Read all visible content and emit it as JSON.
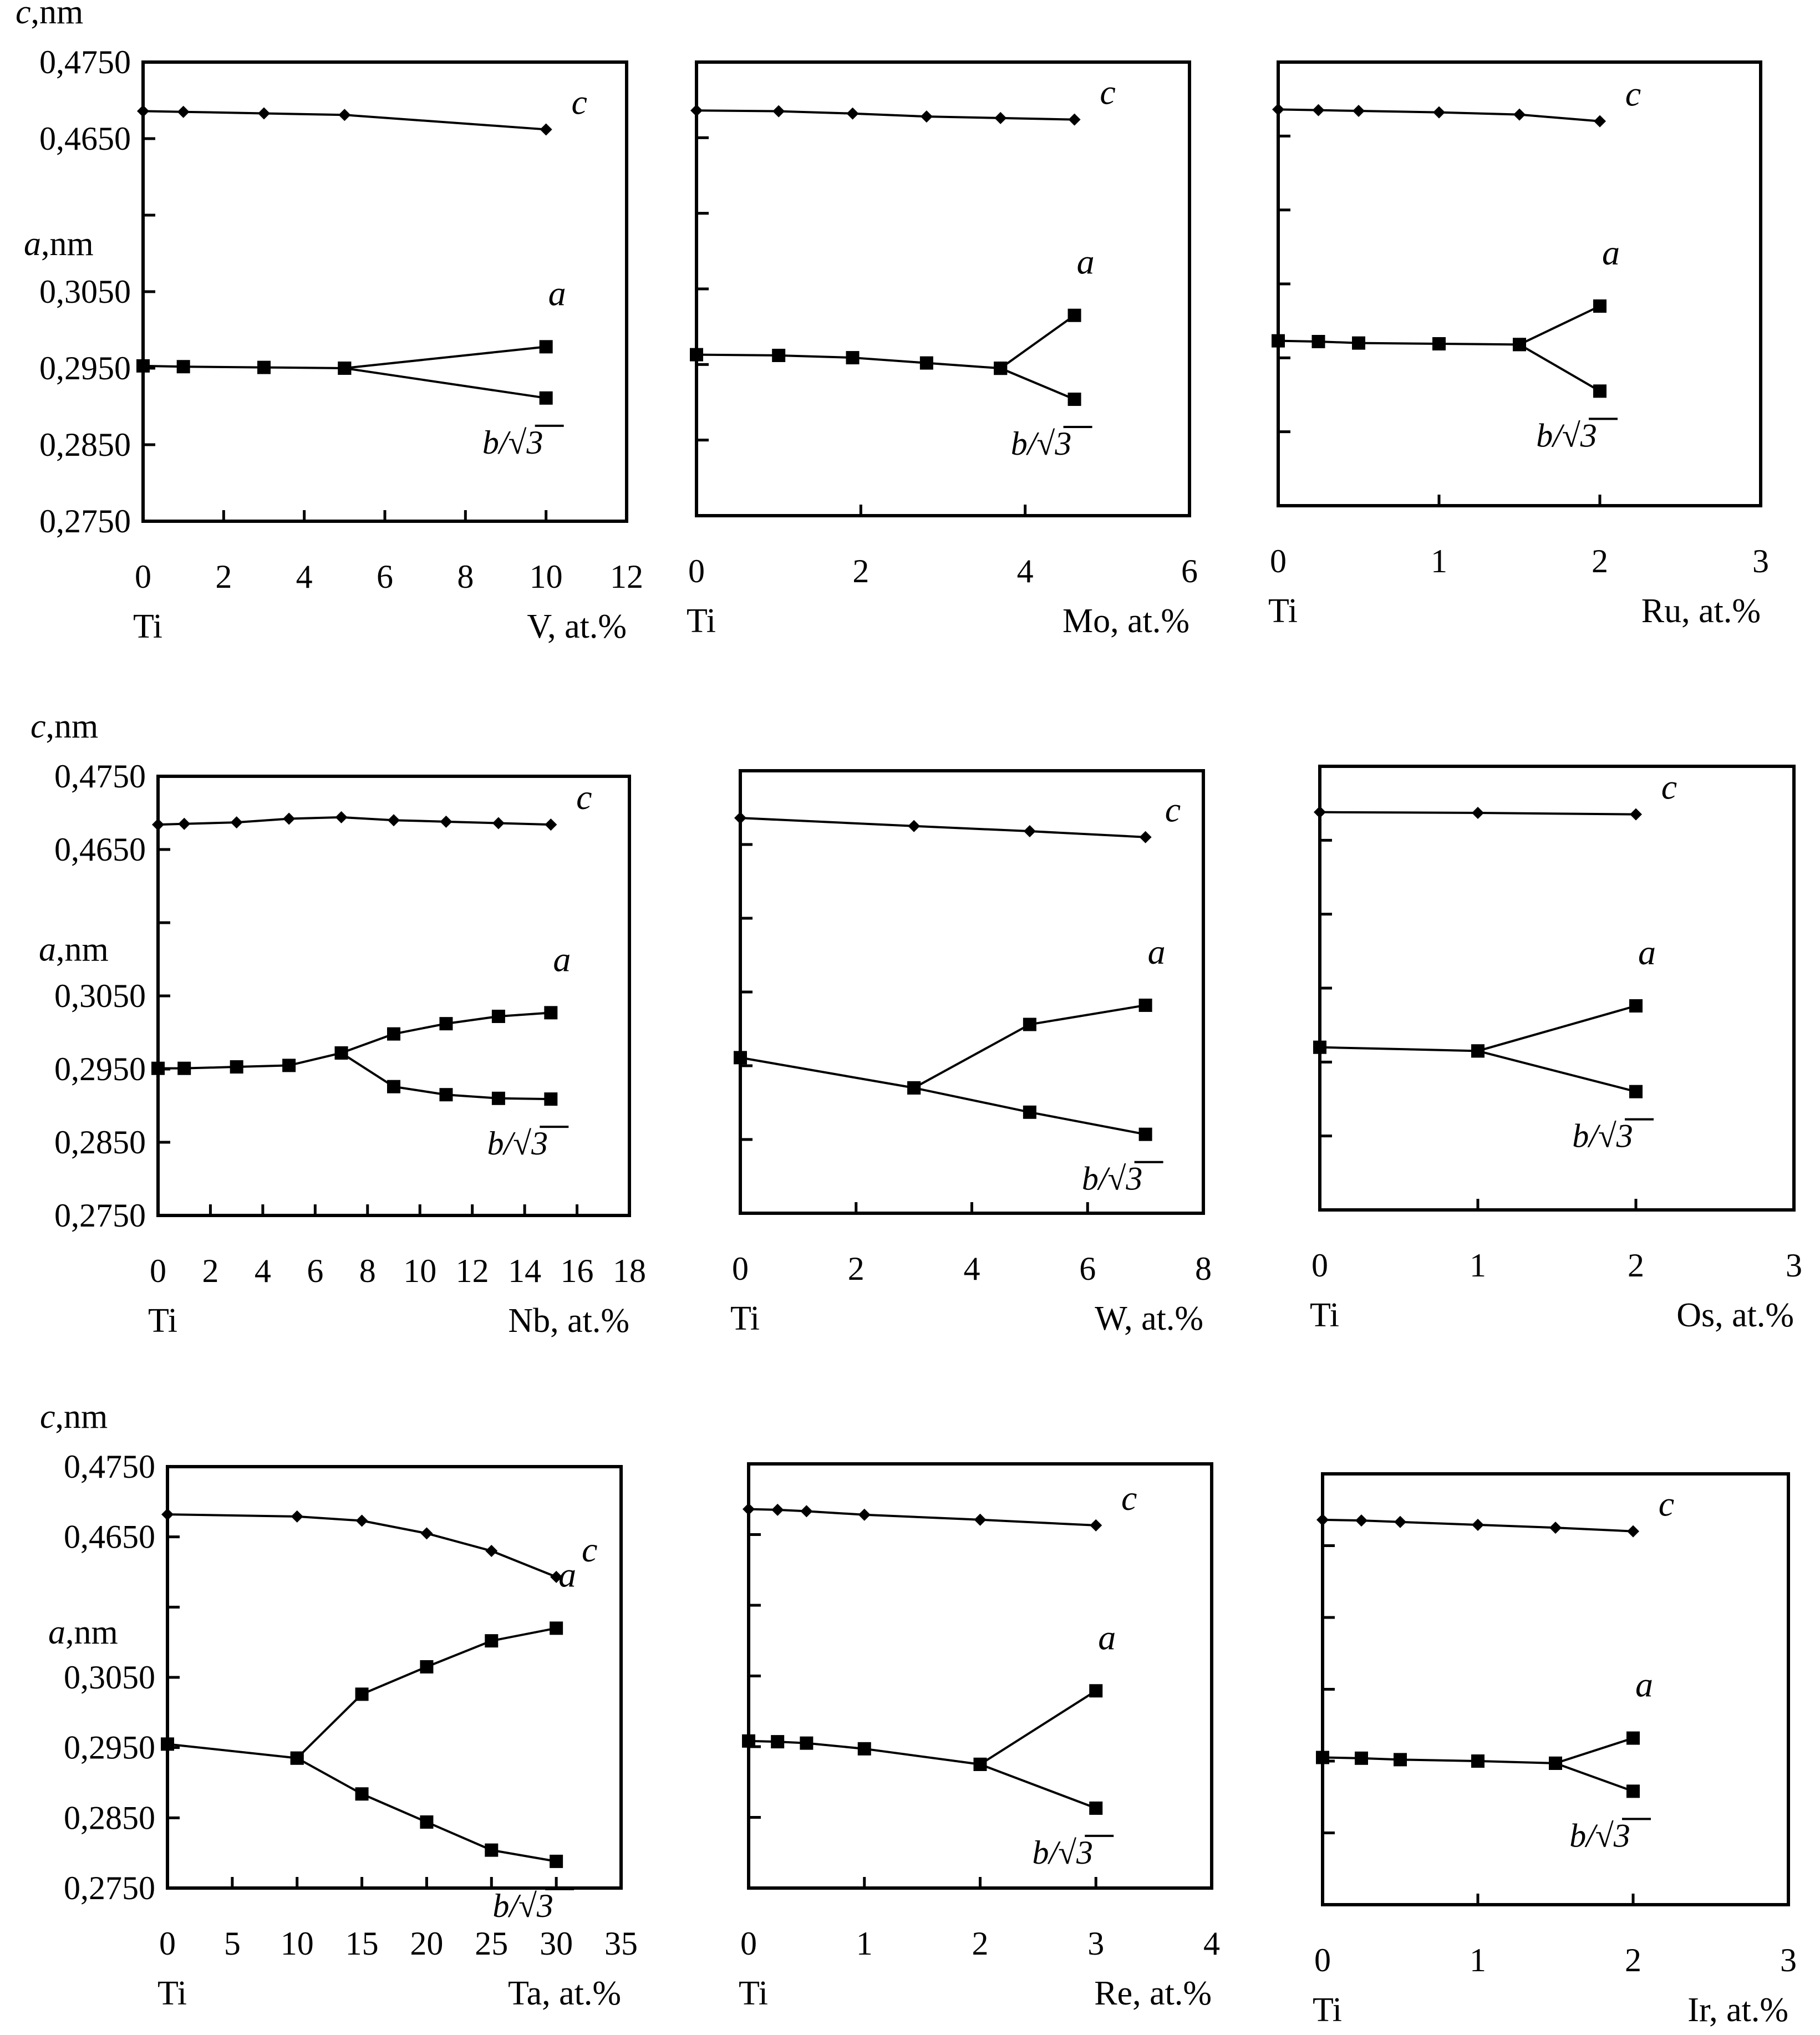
{
  "figure": {
    "element_prefix": "Ti",
    "axis_upper_label": "c,nm",
    "axis_lower_label": "a,nm",
    "colors": {
      "ink": "#000000",
      "background": "#ffffff"
    }
  },
  "chart_data": [
    {
      "id": "V",
      "type": "line",
      "xlabel": "V, at.%",
      "origin_label": "Ti",
      "xticks": [
        0,
        2,
        4,
        6,
        8,
        10,
        12
      ],
      "xlim": [
        0,
        12
      ],
      "ylim": [
        0.275,
        0.475
      ],
      "yticks": [
        "0,4750",
        "0,4650",
        "",
        "0,3050",
        "0,2950",
        "0,2850",
        "0,2750"
      ],
      "series": [
        {
          "name": "c",
          "label": "c",
          "marker": "diamond",
          "x": [
            0,
            1,
            3,
            5,
            10
          ],
          "y": [
            0.4686,
            0.4685,
            0.4683,
            0.4681,
            0.4662
          ]
        },
        {
          "name": "a",
          "label": "a",
          "marker": "square",
          "x": [
            0,
            1,
            3,
            5,
            10
          ],
          "y": [
            0.2953,
            0.2952,
            0.2951,
            0.295,
            0.2978
          ]
        },
        {
          "name": "b/√3",
          "label": "b/√3",
          "marker": "square",
          "x": [
            5,
            10
          ],
          "y": [
            0.295,
            0.2911
          ]
        }
      ]
    },
    {
      "id": "Mo",
      "type": "line",
      "xlabel": "Mo, at.%",
      "origin_label": "Ti",
      "xticks": [
        0,
        2,
        4,
        6
      ],
      "xlim": [
        0,
        6
      ],
      "ylim": [
        0.275,
        0.475
      ],
      "yticks": [
        "",
        "",
        "",
        "",
        "",
        "",
        ""
      ],
      "series": [
        {
          "name": "c",
          "label": "c",
          "marker": "diamond",
          "x": [
            0,
            1,
            1.9,
            2.8,
            3.7,
            4.6
          ],
          "y": [
            0.4686,
            0.4685,
            0.4682,
            0.4678,
            0.4676,
            0.4674
          ]
        },
        {
          "name": "a",
          "label": "a",
          "marker": "square",
          "x": [
            0,
            1,
            1.9,
            2.8,
            3.7,
            4.6
          ],
          "y": [
            0.2963,
            0.2962,
            0.2959,
            0.2952,
            0.2945,
            0.3015
          ]
        },
        {
          "name": "b/√3",
          "label": "b/√3",
          "marker": "square",
          "x": [
            3.7,
            4.6
          ],
          "y": [
            0.2945,
            0.2904
          ]
        }
      ]
    },
    {
      "id": "Ru",
      "type": "line",
      "xlabel": "Ru, at.%",
      "origin_label": "Ti",
      "xticks": [
        0,
        1,
        2,
        3
      ],
      "xlim": [
        0,
        3
      ],
      "ylim": [
        0.275,
        0.475
      ],
      "yticks": [
        "",
        "",
        "",
        "",
        "",
        "",
        ""
      ],
      "series": [
        {
          "name": "c",
          "label": "c",
          "marker": "diamond",
          "x": [
            0,
            0.25,
            0.5,
            1,
            1.5,
            2
          ],
          "y": [
            0.4686,
            0.4685,
            0.4684,
            0.4682,
            0.4679,
            0.467
          ]
        },
        {
          "name": "a",
          "label": "a",
          "marker": "square",
          "x": [
            0,
            0.25,
            0.5,
            1,
            1.5,
            2
          ],
          "y": [
            0.2973,
            0.2972,
            0.297,
            0.2969,
            0.2968,
            0.302
          ]
        },
        {
          "name": "b/√3",
          "label": "b/√3",
          "marker": "square",
          "x": [
            1.5,
            2
          ],
          "y": [
            0.2968,
            0.2905
          ]
        }
      ]
    },
    {
      "id": "Nb",
      "type": "line",
      "xlabel": "Nb, at.%",
      "origin_label": "Ti",
      "xticks": [
        0,
        2,
        4,
        6,
        8,
        10,
        12,
        14,
        16,
        18
      ],
      "xlim": [
        0,
        18
      ],
      "ylim": [
        0.275,
        0.475
      ],
      "yticks": [
        "0,4750",
        "0,4650",
        "",
        "0,3050",
        "0,2950",
        "0,2850",
        "0,2750"
      ],
      "series": [
        {
          "name": "c",
          "label": "c",
          "marker": "diamond",
          "x": [
            0,
            1,
            3,
            5,
            7,
            9,
            11,
            13,
            15
          ],
          "y": [
            0.4684,
            0.4685,
            0.4687,
            0.4692,
            0.4694,
            0.469,
            0.4688,
            0.4686,
            0.4684
          ]
        },
        {
          "name": "a",
          "label": "a",
          "marker": "square",
          "x": [
            0,
            1,
            3,
            5,
            7,
            9,
            11,
            13,
            15
          ],
          "y": [
            0.2951,
            0.2951,
            0.2953,
            0.2955,
            0.2972,
            0.2998,
            0.3012,
            0.3022,
            0.3027
          ]
        },
        {
          "name": "b/√3",
          "label": "b/√3",
          "marker": "square",
          "x": [
            7,
            9,
            11,
            13,
            15
          ],
          "y": [
            0.2972,
            0.2926,
            0.2915,
            0.291,
            0.2909
          ]
        }
      ]
    },
    {
      "id": "W",
      "type": "line",
      "xlabel": "W, at.%",
      "origin_label": "Ti",
      "xticks": [
        0,
        2,
        4,
        6,
        8
      ],
      "xlim": [
        0,
        8
      ],
      "ylim": [
        0.275,
        0.475
      ],
      "yticks": [
        "",
        "",
        "",
        "",
        "",
        "",
        ""
      ],
      "series": [
        {
          "name": "c",
          "label": "c",
          "marker": "diamond",
          "x": [
            0,
            3,
            5,
            7
          ],
          "y": [
            0.4686,
            0.4675,
            0.4668,
            0.466
          ]
        },
        {
          "name": "a",
          "label": "a",
          "marker": "square",
          "x": [
            0,
            3,
            5,
            7
          ],
          "y": [
            0.2961,
            0.292,
            0.3006,
            0.3032
          ]
        },
        {
          "name": "b/√3",
          "label": "b/√3",
          "marker": "square",
          "x": [
            3,
            5,
            7
          ],
          "y": [
            0.292,
            0.2887,
            0.2857
          ]
        }
      ]
    },
    {
      "id": "Os",
      "type": "line",
      "xlabel": "Os, at.%",
      "origin_label": "Ti",
      "xticks": [
        0,
        1,
        2,
        3
      ],
      "xlim": [
        0,
        3
      ],
      "ylim": [
        0.275,
        0.475
      ],
      "yticks": [
        "",
        "",
        "",
        "",
        "",
        "",
        ""
      ],
      "series": [
        {
          "name": "c",
          "label": "c",
          "marker": "diamond",
          "x": [
            0,
            1,
            2
          ],
          "y": [
            0.4688,
            0.4687,
            0.4685
          ]
        },
        {
          "name": "a",
          "label": "a",
          "marker": "square",
          "x": [
            0,
            1,
            2
          ],
          "y": [
            0.297,
            0.2965,
            0.3026
          ]
        },
        {
          "name": "b/√3",
          "label": "b/√3",
          "marker": "square",
          "x": [
            1,
            2
          ],
          "y": [
            0.2965,
            0.291
          ]
        }
      ]
    },
    {
      "id": "Ta",
      "type": "line",
      "xlabel": "Ta, at.%",
      "origin_label": "Ti",
      "xticks": [
        0,
        5,
        10,
        15,
        20,
        25,
        30,
        35
      ],
      "xlim": [
        0,
        35
      ],
      "ylim": [
        0.275,
        0.475
      ],
      "yticks": [
        "0,4750",
        "0,4650",
        "",
        "0,3050",
        "0,2950",
        "0,2850",
        "0,2750"
      ],
      "series": [
        {
          "name": "c",
          "label": "c",
          "marker": "diamond",
          "x": [
            0,
            10,
            15,
            20,
            25,
            30
          ],
          "y": [
            0.4682,
            0.4679,
            0.4673,
            0.4655,
            0.463,
            0.4593
          ]
        },
        {
          "name": "a",
          "label": "a",
          "marker": "square",
          "x": [
            0,
            10,
            15,
            20,
            25,
            30
          ],
          "y": [
            0.2955,
            0.2935,
            0.3026,
            0.3065,
            0.3102,
            0.312
          ]
        },
        {
          "name": "b/√3",
          "label": "b/√3",
          "marker": "square",
          "x": [
            10,
            15,
            20,
            25,
            30
          ],
          "y": [
            0.2935,
            0.2884,
            0.2844,
            0.2804,
            0.2788
          ]
        }
      ]
    },
    {
      "id": "Re",
      "type": "line",
      "xlabel": "Re, at.%",
      "origin_label": "Ti",
      "xticks": [
        0,
        1,
        2,
        3,
        4
      ],
      "xlim": [
        0,
        4
      ],
      "ylim": [
        0.275,
        0.475
      ],
      "yticks": [
        "",
        "",
        "",
        "",
        "",
        "",
        ""
      ],
      "series": [
        {
          "name": "c",
          "label": "c",
          "marker": "diamond",
          "x": [
            0,
            0.25,
            0.5,
            1,
            2,
            3
          ],
          "y": [
            0.4686,
            0.4685,
            0.4683,
            0.4678,
            0.4671,
            0.4663
          ]
        },
        {
          "name": "a",
          "label": "a",
          "marker": "square",
          "x": [
            0,
            0.25,
            0.5,
            1,
            2,
            3
          ],
          "y": [
            0.2958,
            0.2957,
            0.2955,
            0.2947,
            0.2925,
            0.3029
          ]
        },
        {
          "name": "b/√3",
          "label": "b/√3",
          "marker": "square",
          "x": [
            2,
            3
          ],
          "y": [
            0.2925,
            0.2863
          ]
        }
      ]
    },
    {
      "id": "Ir",
      "type": "line",
      "xlabel": "Ir, at.%",
      "origin_label": "Ti",
      "xticks": [
        0,
        1,
        2,
        3
      ],
      "xlim": [
        0,
        3
      ],
      "ylim": [
        0.275,
        0.475
      ],
      "yticks": [
        "",
        "",
        "",
        "",
        "",
        "",
        ""
      ],
      "series": [
        {
          "name": "c",
          "label": "c",
          "marker": "diamond",
          "x": [
            0,
            0.25,
            0.5,
            1,
            1.5,
            2
          ],
          "y": [
            0.4686,
            0.4685,
            0.4683,
            0.4679,
            0.4675,
            0.467
          ]
        },
        {
          "name": "a",
          "label": "a",
          "marker": "square",
          "x": [
            0,
            0.25,
            0.5,
            1,
            1.5,
            2
          ],
          "y": [
            0.2955,
            0.2954,
            0.2952,
            0.295,
            0.2947,
            0.2982
          ]
        },
        {
          "name": "b/√3",
          "label": "b/√3",
          "marker": "square",
          "x": [
            1.5,
            2
          ],
          "y": [
            0.2947,
            0.2908
          ]
        }
      ]
    }
  ]
}
